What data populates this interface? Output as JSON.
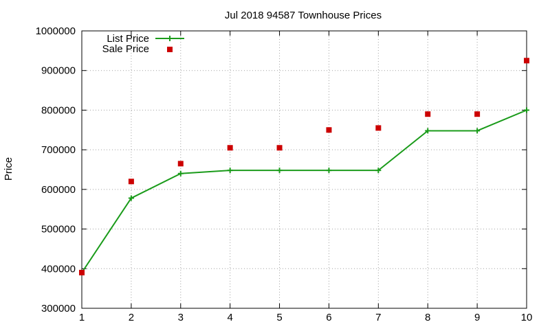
{
  "chart_data": {
    "type": "line",
    "title": "Jul 2018 94587 Townhouse Prices",
    "xlabel": "",
    "ylabel": "Price",
    "x": [
      1,
      2,
      3,
      4,
      5,
      6,
      7,
      8,
      9,
      10
    ],
    "xlim": [
      1,
      10
    ],
    "ylim": [
      300000,
      1000000
    ],
    "yticks": [
      300000,
      400000,
      500000,
      600000,
      700000,
      800000,
      900000,
      1000000
    ],
    "xticks": [
      1,
      2,
      3,
      4,
      5,
      6,
      7,
      8,
      9,
      10
    ],
    "grid": true,
    "legend_position": "top-left",
    "series": [
      {
        "name": "List Price",
        "style": "line+plus-markers",
        "color": "#1a9b1a",
        "values": [
          390000,
          578000,
          640000,
          648000,
          648000,
          648000,
          648000,
          748000,
          748000,
          800000
        ]
      },
      {
        "name": "Sale Price",
        "style": "square-markers",
        "color": "#cc0000",
        "values": [
          390000,
          620000,
          665000,
          705000,
          705000,
          750000,
          755000,
          790000,
          790000,
          925000
        ]
      }
    ]
  }
}
